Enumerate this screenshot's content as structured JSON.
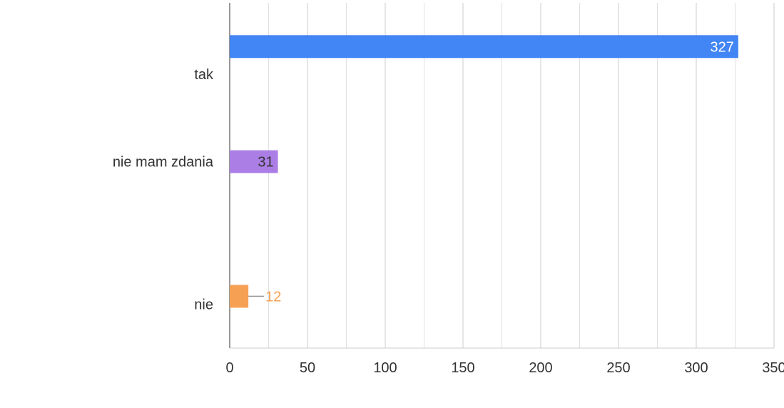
{
  "chart_data": {
    "type": "bar",
    "orientation": "horizontal",
    "title": "",
    "xlabel": "",
    "ylabel": "",
    "categories": [
      "tak",
      "nie mam zdania",
      "nie"
    ],
    "values": [
      327,
      31,
      12
    ],
    "colors": [
      "#4285f4",
      "#ab7ee6",
      "#f6a054"
    ],
    "label_colors": [
      "#ffffff",
      "#333333",
      "#f6a054"
    ],
    "xlim": [
      0,
      350
    ],
    "x_ticks": [
      0,
      50,
      100,
      150,
      200,
      250,
      300,
      350
    ],
    "minor_gridlines": true,
    "grid": true,
    "legend": "none"
  }
}
